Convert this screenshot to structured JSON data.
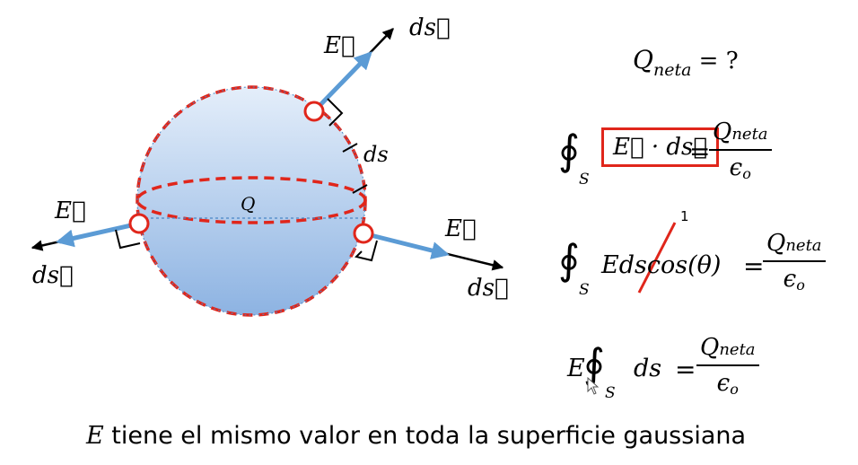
{
  "diagram": {
    "labels": {
      "E_vec": "E⃗",
      "ds_vec": "ds⃗",
      "ds": "ds",
      "Q": "Q",
      "one": "1"
    },
    "colors": {
      "sphere_fill_top": "#dbe8f7",
      "sphere_fill_bottom": "#8fb6e3",
      "dashed_red": "#e0261b",
      "field_arrow_blue": "#5b9bd5",
      "dot_line_blue": "#4a86c5",
      "black": "#000000"
    }
  },
  "equations": {
    "q_question": "Q",
    "q_question_sub": "neta",
    "q_question_rest": " = ?",
    "integral_symbol": "∮",
    "sub_S": "S",
    "eq1_boxed": "E⃗ · ds⃗",
    "eq_equals": "=",
    "frac_num": "Q",
    "frac_num_sub": "neta",
    "frac_den": "ϵ",
    "frac_den_sub": "o",
    "eq2_lhs": "Edscos(θ)",
    "eq3_E": "E",
    "eq3_ds": "ds"
  },
  "caption": {
    "E": "E",
    "text": " tiene el mismo valor en toda la superficie gaussiana"
  }
}
